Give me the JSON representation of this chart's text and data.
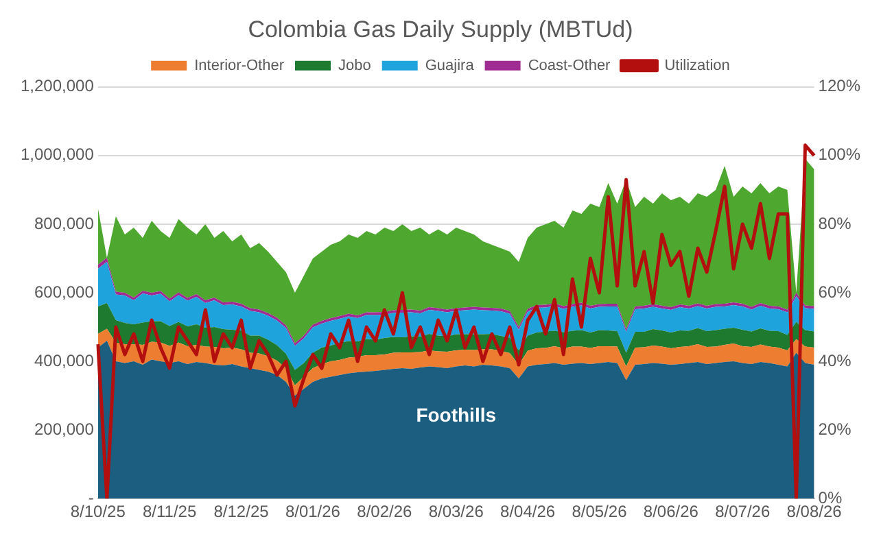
{
  "chart_data": {
    "type": "area",
    "title": "Colombia Gas Daily Supply (MBTUd)",
    "stacked": true,
    "legend": "top",
    "grid": "y",
    "categories": [
      "8/10/25",
      null,
      null,
      null,
      null,
      null,
      null,
      null,
      "8/11/25",
      null,
      null,
      null,
      null,
      null,
      null,
      null,
      "8/12/25",
      null,
      null,
      null,
      null,
      null,
      null,
      null,
      "8/01/26",
      null,
      null,
      null,
      null,
      null,
      null,
      null,
      "8/02/26",
      null,
      null,
      null,
      null,
      null,
      null,
      null,
      "8/03/26",
      null,
      null,
      null,
      null,
      null,
      null,
      null,
      "8/04/26",
      null,
      null,
      null,
      null,
      null,
      null,
      null,
      "8/05/26",
      null,
      null,
      null,
      null,
      null,
      null,
      null,
      "8/06/26",
      null,
      null,
      null,
      null,
      null,
      null,
      null,
      "8/07/26",
      null,
      null,
      null,
      null,
      null,
      null,
      null,
      "8/08/26"
    ],
    "series": [
      {
        "color": "#1b5e80",
        "values": [
          440000,
          460000,
          400000,
          395000,
          400000,
          390000,
          405000,
          400000,
          395000,
          400000,
          392000,
          398000,
          395000,
          390000,
          388000,
          392000,
          385000,
          380000,
          375000,
          370000,
          360000,
          340000,
          300000,
          320000,
          340000,
          350000,
          355000,
          360000,
          365000,
          368000,
          370000,
          372000,
          375000,
          378000,
          380000,
          378000,
          382000,
          385000,
          383000,
          380000,
          385000,
          388000,
          385000,
          390000,
          388000,
          385000,
          380000,
          350000,
          385000,
          390000,
          392000,
          395000,
          390000,
          393000,
          395000,
          392000,
          395000,
          398000,
          395000,
          345000,
          390000,
          392000,
          395000,
          393000,
          390000,
          392000,
          395000,
          398000,
          392000,
          395000,
          398000,
          400000,
          395000,
          392000,
          398000,
          395000,
          390000,
          385000,
          425000,
          395000,
          390000
        ]
      },
      {
        "name": "Interior-Other",
        "color": "#ed7d31",
        "values": [
          40000,
          35000,
          55000,
          55000,
          50000,
          58000,
          52000,
          55000,
          50000,
          55000,
          52000,
          50000,
          48000,
          52000,
          50000,
          48000,
          50000,
          45000,
          48000,
          45000,
          42000,
          40000,
          30000,
          35000,
          40000,
          42000,
          45000,
          44000,
          46000,
          45000,
          48000,
          46000,
          45000,
          47000,
          46000,
          48000,
          45000,
          47000,
          46000,
          48000,
          47000,
          46000,
          48000,
          45000,
          47000,
          46000,
          44000,
          40000,
          46000,
          48000,
          47000,
          49000,
          48000,
          50000,
          48000,
          47000,
          49000,
          46000,
          48000,
          40000,
          50000,
          49000,
          51000,
          50000,
          48000,
          50000,
          49000,
          52000,
          50000,
          48000,
          50000,
          52000,
          49000,
          50000,
          51000,
          48000,
          50000,
          47000,
          40000,
          48000,
          50000
        ]
      },
      {
        "name": "Jobo",
        "color": "#1e7a2e",
        "values": [
          80000,
          75000,
          65000,
          62000,
          58000,
          65000,
          60000,
          62000,
          58000,
          60000,
          58000,
          60000,
          55000,
          58000,
          56000,
          52000,
          55000,
          50000,
          52000,
          48000,
          45000,
          42000,
          45000,
          40000,
          45000,
          48000,
          46000,
          50000,
          48000,
          45000,
          47000,
          45000,
          48000,
          46000,
          44000,
          47000,
          45000,
          48000,
          46000,
          45000,
          47000,
          45000,
          46000,
          44000,
          45000,
          43000,
          45000,
          42000,
          44000,
          46000,
          48000,
          45000,
          47000,
          46000,
          48000,
          45000,
          47000,
          46000,
          45000,
          40000,
          46000,
          45000,
          48000,
          47000,
          46000,
          48000,
          45000,
          47000,
          46000,
          48000,
          47000,
          46000,
          48000,
          45000,
          47000,
          46000,
          48000,
          45000,
          50000,
          48000,
          47000
        ]
      },
      {
        "name": "Guajira",
        "color": "#1ea3dc",
        "values": [
          110000,
          120000,
          75000,
          80000,
          70000,
          85000,
          75000,
          80000,
          72000,
          78000,
          75000,
          80000,
          72000,
          78000,
          70000,
          74000,
          70000,
          72000,
          68000,
          70000,
          72000,
          75000,
          70000,
          72000,
          74000,
          70000,
          72000,
          70000,
          72000,
          68000,
          70000,
          72000,
          68000,
          70000,
          72000,
          70000,
          68000,
          70000,
          72000,
          70000,
          68000,
          70000,
          72000,
          70000,
          68000,
          72000,
          70000,
          60000,
          70000,
          72000,
          70000,
          72000,
          68000,
          70000,
          72000,
          70000,
          68000,
          70000,
          72000,
          60000,
          66000,
          68000,
          65000,
          64000,
          66000,
          68000,
          65000,
          64000,
          66000,
          68000,
          65000,
          66000,
          68000,
          64000,
          66000,
          65000,
          64000,
          66000,
          75000,
          64000,
          66000
        ]
      },
      {
        "name": "Coast-Other",
        "color": "#a02b93",
        "values": [
          12000,
          12000,
          8000,
          8000,
          8000,
          8000,
          8000,
          8000,
          8000,
          8000,
          8000,
          8000,
          8000,
          8000,
          8000,
          8000,
          8000,
          8000,
          8000,
          8000,
          8000,
          8000,
          8000,
          8000,
          8000,
          8000,
          8000,
          8000,
          8000,
          8000,
          8000,
          8000,
          8000,
          8000,
          8000,
          8000,
          8000,
          8000,
          8000,
          8000,
          8000,
          8000,
          8000,
          8000,
          8000,
          8000,
          8000,
          8000,
          8000,
          8000,
          8000,
          8000,
          8000,
          8000,
          8000,
          8000,
          8000,
          8000,
          8000,
          8000,
          8000,
          8000,
          8000,
          8000,
          8000,
          8000,
          8000,
          8000,
          8000,
          8000,
          8000,
          8000,
          8000,
          8000,
          8000,
          8000,
          8000,
          8000,
          10000,
          8000,
          8000
        ]
      },
      {
        "color": "#4ea72e",
        "values": [
          165000,
          0,
          220000,
          170000,
          204000,
          154000,
          210000,
          175000,
          177000,
          214000,
          205000,
          174000,
          222000,
          174000,
          208000,
          176000,
          202000,
          175000,
          194000,
          179000,
          163000,
          155000,
          147000,
          175000,
          193000,
          202000,
          214000,
          218000,
          231000,
          226000,
          237000,
          227000,
          246000,
          231000,
          250000,
          229000,
          242000,
          212000,
          230000,
          219000,
          235000,
          223000,
          211000,
          193000,
          184000,
          176000,
          173000,
          190000,
          207000,
          226000,
          235000,
          241000,
          229000,
          273000,
          259000,
          298000,
          283000,
          352000,
          292000,
          437000,
          290000,
          318000,
          293000,
          328000,
          312000,
          314000,
          298000,
          321000,
          318000,
          333000,
          402000,
          308000,
          342000,
          331000,
          350000,
          328000,
          350000,
          349000,
          0,
          427000,
          399000
        ]
      },
      {
        "type": "line",
        "axis": "y2",
        "name": "Utilization",
        "color": "#b40f0f",
        "values": [
          45,
          0,
          50,
          42,
          48,
          40,
          52,
          44,
          38,
          50,
          46,
          42,
          55,
          40,
          48,
          44,
          52,
          38,
          46,
          42,
          36,
          40,
          27,
          35,
          42,
          38,
          48,
          44,
          52,
          40,
          50,
          46,
          55,
          48,
          60,
          44,
          50,
          42,
          52,
          46,
          55,
          44,
          50,
          40,
          48,
          42,
          50,
          39,
          52,
          56,
          48,
          58,
          42,
          64,
          50,
          70,
          60,
          88,
          62,
          93,
          62,
          72,
          57,
          77,
          68,
          72,
          59,
          73,
          66,
          78,
          91,
          67,
          80,
          73,
          86,
          70,
          83,
          83,
          0,
          103,
          100
        ]
      }
    ],
    "ylim": [
      0,
      1200000
    ],
    "yticks": [
      {
        "value": 0,
        "label": "-"
      },
      {
        "value": 200000,
        "label": "200,000"
      },
      {
        "value": 400000,
        "label": "400,000"
      },
      {
        "value": 600000,
        "label": "600,000"
      },
      {
        "value": 800000,
        "label": "800,000"
      },
      {
        "value": 1000000,
        "label": "1,000,000"
      },
      {
        "value": 1200000,
        "label": "1,200,000"
      }
    ],
    "y2lim": [
      0,
      120
    ],
    "y2ticks": [
      {
        "value": 0,
        "label": "0%"
      },
      {
        "value": 20,
        "label": "20%"
      },
      {
        "value": 40,
        "label": "40%"
      },
      {
        "value": 60,
        "label": "60%"
      },
      {
        "value": 80,
        "label": "80%"
      },
      {
        "value": 100,
        "label": "100%"
      },
      {
        "value": 120,
        "label": "120%"
      }
    ],
    "annotations": [
      "Foothills"
    ]
  }
}
